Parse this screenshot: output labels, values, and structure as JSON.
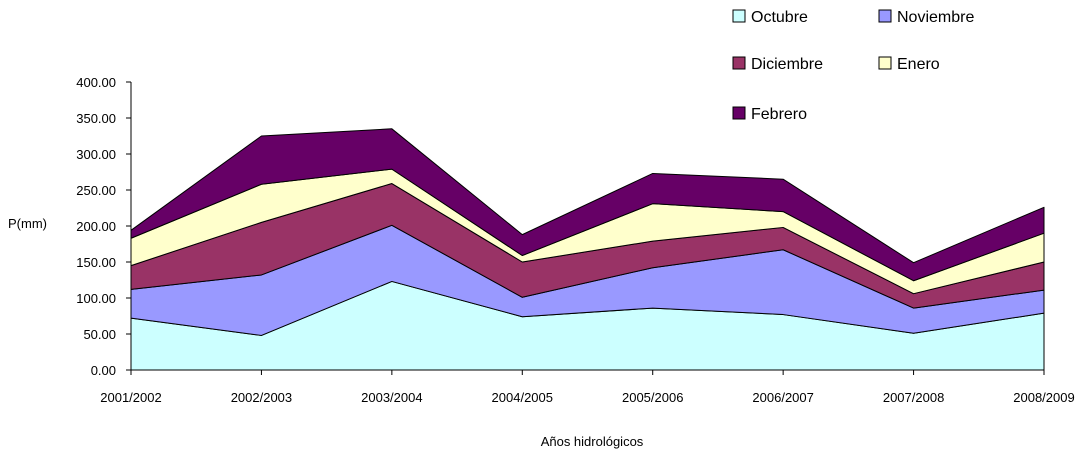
{
  "chart_data": {
    "type": "area",
    "stacked": true,
    "categories": [
      "2001/2002",
      "2002/2003",
      "2003/2004",
      "2004/2005",
      "2005/2006",
      "2006/2007",
      "2007/2008",
      "2008/2009"
    ],
    "series": [
      {
        "name": "Octubre",
        "color": "#ccffff",
        "values": [
          72,
          48,
          123,
          74,
          86,
          77,
          51,
          79
        ]
      },
      {
        "name": "Noviembre",
        "color": "#9999ff",
        "values": [
          40,
          84,
          78,
          27,
          56,
          90,
          35,
          32
        ]
      },
      {
        "name": "Diciembre",
        "color": "#993366",
        "values": [
          33,
          73,
          58,
          49,
          37,
          31,
          20,
          39
        ]
      },
      {
        "name": "Enero",
        "color": "#ffffcc",
        "values": [
          38,
          53,
          20,
          9,
          52,
          22,
          18,
          40
        ]
      },
      {
        "name": "Febrero",
        "color": "#660066",
        "values": [
          11,
          67,
          56,
          29,
          42,
          45,
          25,
          36
        ]
      }
    ],
    "ylabel": "P(mm)",
    "xlabel": "Años hidrológicos",
    "ylim": [
      0,
      400
    ],
    "yticks": [
      "0.00",
      "50.00",
      "100.00",
      "150.00",
      "200.00",
      "250.00",
      "300.00",
      "350.00",
      "400.00"
    ],
    "grid": false,
    "legend_position": "top-right"
  }
}
